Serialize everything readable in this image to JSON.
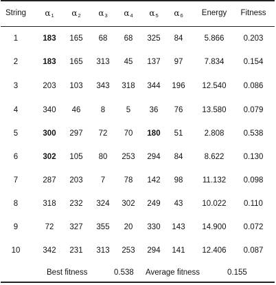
{
  "table": {
    "headers": {
      "string": "String",
      "alpha_symbol": "α",
      "alpha_subscripts": [
        "1",
        "2",
        "3",
        "4",
        "5",
        "6"
      ],
      "energy": "Energy",
      "fitness": "Fitness"
    },
    "rows": [
      {
        "string": "1",
        "a1": "183",
        "a2": "165",
        "a3": "68",
        "a4": "68",
        "a5": "325",
        "a6": "84",
        "energy": "5.866",
        "fitness": "0.203"
      },
      {
        "string": "2",
        "a1": "183",
        "a2": "165",
        "a3": "313",
        "a4": "45",
        "a5": "137",
        "a6": "97",
        "energy": "7.834",
        "fitness": "0.154"
      },
      {
        "string": "3",
        "a1": "203",
        "a2": "103",
        "a3": "343",
        "a4": "318",
        "a5": "344",
        "a6": "196",
        "energy": "12.540",
        "fitness": "0.086"
      },
      {
        "string": "4",
        "a1": "340",
        "a2": "46",
        "a3": "8",
        "a4": "5",
        "a5": "36",
        "a6": "76",
        "energy": "13.580",
        "fitness": "0.079"
      },
      {
        "string": "5",
        "a1": "300",
        "a2": "297",
        "a3": "72",
        "a4": "70",
        "a5": "180",
        "a6": "51",
        "energy": "2.808",
        "fitness": "0.538"
      },
      {
        "string": "6",
        "a1": "302",
        "a2": "105",
        "a3": "80",
        "a4": "253",
        "a5": "294",
        "a6": "84",
        "energy": "8.622",
        "fitness": "0.130"
      },
      {
        "string": "7",
        "a1": "287",
        "a2": "203",
        "a3": "7",
        "a4": "78",
        "a5": "142",
        "a6": "98",
        "energy": "11.132",
        "fitness": "0.098"
      },
      {
        "string": "8",
        "a1": "318",
        "a2": "232",
        "a3": "324",
        "a4": "302",
        "a5": "249",
        "a6": "43",
        "energy": "10.022",
        "fitness": "0.110"
      },
      {
        "string": "9",
        "a1": "72",
        "a2": "327",
        "a3": "355",
        "a4": "20",
        "a5": "330",
        "a6": "143",
        "energy": "14.900",
        "fitness": "0.072"
      },
      {
        "string": "10",
        "a1": "342",
        "a2": "231",
        "a3": "313",
        "a4": "253",
        "a5": "294",
        "a6": "141",
        "energy": "12.406",
        "fitness": "0.087"
      }
    ],
    "bold_cells": [
      {
        "row": 0,
        "col": "a1"
      },
      {
        "row": 1,
        "col": "a1"
      },
      {
        "row": 4,
        "col": "a1"
      },
      {
        "row": 4,
        "col": "a5"
      },
      {
        "row": 5,
        "col": "a1"
      }
    ]
  },
  "footer": {
    "best_fitness_label": "Best fitness",
    "best_fitness_value": "0.538",
    "average_fitness_label": "Average fitness",
    "average_fitness_value": "0.155"
  },
  "colors": {
    "text": "#111111",
    "rule": "#222222",
    "background": "#ffffff"
  }
}
